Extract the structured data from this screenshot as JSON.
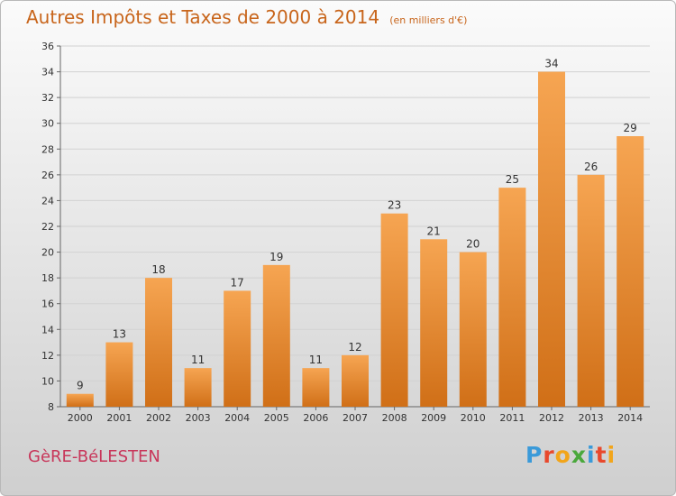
{
  "header": {
    "title": "Autres Impôts et Taxes de 2000 à 2014",
    "unit": "(en milliers d'€)"
  },
  "footer": {
    "commune": "GèRE-BéLESTEN",
    "brand_letters": [
      "P",
      "r",
      "o",
      "x",
      "i",
      "t",
      "i"
    ],
    "brand_colors": [
      "#3a9ad9",
      "#e8482c",
      "#f2a51a",
      "#4aa83c",
      "#3a9ad9",
      "#e8482c",
      "#f2a51a"
    ]
  },
  "colors": {
    "bar_light": "#f6a552",
    "bar_dark": "#d06f17",
    "title": "#c8651b",
    "commune": "#c8365a"
  },
  "chart_data": {
    "type": "bar",
    "title": "Autres Impôts et Taxes de 2000 à 2014",
    "subtitle": "(en milliers d'€)",
    "xlabel": "",
    "ylabel": "",
    "categories": [
      "2000",
      "2001",
      "2002",
      "2003",
      "2004",
      "2005",
      "2006",
      "2007",
      "2008",
      "2009",
      "2010",
      "2011",
      "2012",
      "2013",
      "2014"
    ],
    "values": [
      9,
      13,
      18,
      11,
      17,
      19,
      11,
      12,
      23,
      21,
      20,
      25,
      34,
      26,
      29
    ],
    "ylim": [
      8,
      36
    ],
    "yticks": [
      8,
      10,
      12,
      14,
      16,
      18,
      20,
      22,
      24,
      26,
      28,
      30,
      32,
      34,
      36
    ],
    "grid": true,
    "data_labels": true
  }
}
